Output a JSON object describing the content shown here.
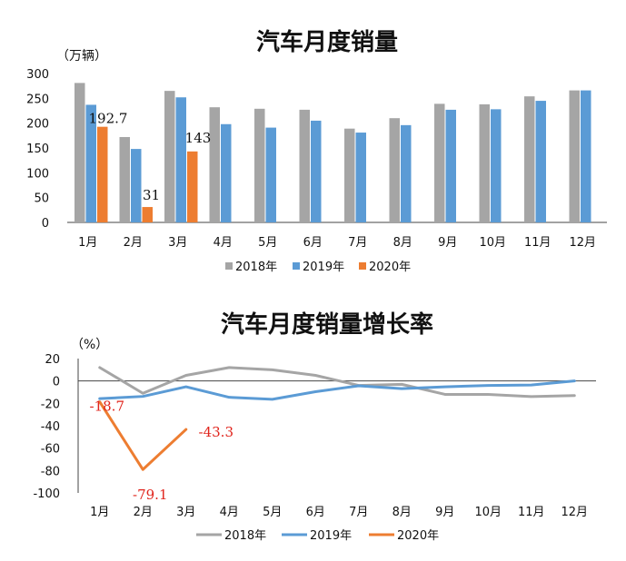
{
  "chart_data": [
    {
      "type": "bar",
      "title": "汽车月度销量",
      "ylabel": "（万辆）",
      "ylim": [
        0,
        300
      ],
      "yticks": [
        "0",
        "50",
        "100",
        "150",
        "200",
        "250",
        "300"
      ],
      "categories": [
        "1月",
        "2月",
        "3月",
        "4月",
        "5月",
        "6月",
        "7月",
        "8月",
        "9月",
        "10月",
        "11月",
        "12月"
      ],
      "series": [
        {
          "name": "2018年",
          "color": "#a5a5a5",
          "values": [
            281,
            172,
            265,
            232,
            229,
            227,
            189,
            210,
            239,
            238,
            254,
            266
          ]
        },
        {
          "name": "2019年",
          "color": "#5b9bd5",
          "values": [
            237,
            148,
            252,
            198,
            191,
            205,
            181,
            196,
            227,
            228,
            245,
            266
          ]
        },
        {
          "name": "2020年",
          "color": "#ed7d31",
          "values": [
            192.7,
            31,
            143,
            null,
            null,
            null,
            null,
            null,
            null,
            null,
            null,
            null
          ]
        }
      ],
      "data_labels": [
        {
          "series": 2,
          "index": 0,
          "text": "192.7"
        },
        {
          "series": 2,
          "index": 1,
          "text": "31"
        },
        {
          "series": 2,
          "index": 2,
          "text": "143"
        }
      ],
      "legend": "bottom"
    },
    {
      "type": "line",
      "title": "汽车月度销量增长率",
      "ylabel": "（%）",
      "ylim": [
        -100,
        20
      ],
      "yticks": [
        "20",
        "0",
        "-20",
        "-40",
        "-60",
        "-80",
        "-100"
      ],
      "categories": [
        "1月",
        "2月",
        "3月",
        "4月",
        "5月",
        "6月",
        "7月",
        "8月",
        "9月",
        "10月",
        "11月",
        "12月"
      ],
      "series": [
        {
          "name": "2018年",
          "color": "#a5a5a5",
          "values": [
            12,
            -11,
            5,
            12,
            10,
            5,
            -4,
            -3,
            -12,
            -12,
            -14,
            -13
          ]
        },
        {
          "name": "2019年",
          "color": "#5b9bd5",
          "values": [
            -15.8,
            -13.8,
            -5.2,
            -14.6,
            -16.4,
            -9.6,
            -4.3,
            -6.9,
            -5.2,
            -4,
            -3.6,
            0
          ]
        },
        {
          "name": "2020年",
          "color": "#ed7d31",
          "values": [
            -18.7,
            -79.1,
            -43.3,
            null,
            null,
            null,
            null,
            null,
            null,
            null,
            null,
            null
          ]
        }
      ],
      "data_labels": [
        {
          "series": 2,
          "index": 0,
          "text": "-18.7"
        },
        {
          "series": 2,
          "index": 1,
          "text": "-79.1"
        },
        {
          "series": 2,
          "index": 2,
          "text": "-43.3"
        }
      ],
      "legend": "bottom"
    }
  ]
}
